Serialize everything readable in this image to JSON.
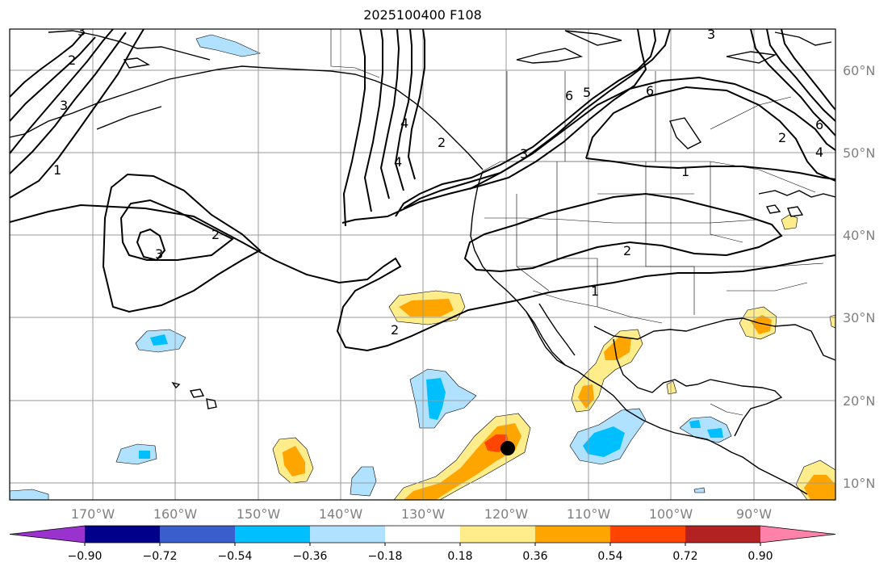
{
  "title": "2025100400 F108",
  "lat_labels": [
    "60°N",
    "50°N",
    "40°N",
    "30°N",
    "20°N",
    "10°N"
  ],
  "lon_labels": [
    "170°W",
    "160°W",
    "150°W",
    "140°W",
    "130°W",
    "120°W",
    "110°W",
    "100°W",
    "90°W"
  ],
  "colorbar": {
    "ticks": [
      "−0.90",
      "−0.72",
      "−0.54",
      "−0.36",
      "−0.18",
      "0.18",
      "0.36",
      "0.54",
      "0.72",
      "0.90"
    ],
    "colors": [
      "#9a32cd",
      "#00008b",
      "#3a5fcd",
      "#00bfff",
      "#b0e2ff",
      "#ffffff",
      "#ffec8b",
      "#ffa500",
      "#ff4500",
      "#b22222",
      "#ff82ab"
    ]
  },
  "contour_labels": [
    "3",
    "1",
    "2",
    "3",
    "2",
    "4",
    "4",
    "2",
    "6",
    "5",
    "3",
    "6",
    "1",
    "2",
    "1",
    "2",
    "3",
    "6",
    "4",
    "3",
    "2"
  ],
  "marker": "storm-center-dot"
}
